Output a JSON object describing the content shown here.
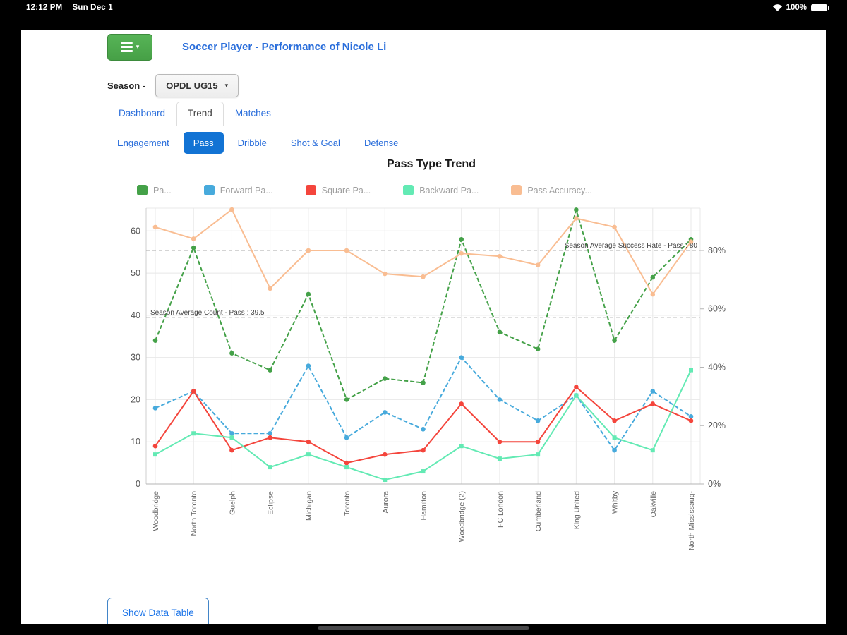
{
  "status_bar": {
    "time": "12:12 PM",
    "date": "Sun Dec 1",
    "battery": "100%"
  },
  "header": {
    "title": "Soccer Player - Performance of Nicole Li"
  },
  "season": {
    "label": "Season -",
    "value": "OPDL UG15"
  },
  "tabs": {
    "items": [
      "Dashboard",
      "Trend",
      "Matches"
    ],
    "active": "Trend"
  },
  "subtabs": {
    "items": [
      "Engagement",
      "Pass",
      "Dribble",
      "Shot & Goal",
      "Defense"
    ],
    "active": "Pass"
  },
  "footer": {
    "show_data_table": "Show Data Table"
  },
  "chart_data": {
    "type": "line",
    "title": "Pass Type Trend",
    "legend_position": "top",
    "grid": true,
    "categories": [
      "Woodbridge",
      "North Toronto",
      "Guelph",
      "Eclipse",
      "Michigan",
      "Toronto",
      "Aurora",
      "Hamilton",
      "Woodbridge (2)",
      "FC London",
      "Cumberland",
      "King United",
      "Whitby",
      "Oakville",
      "North Mississaug-"
    ],
    "series": [
      {
        "name": "Pa...",
        "color": "#44a148",
        "axis": "left",
        "dashed": true,
        "marker": "circle",
        "values": [
          34,
          56,
          31,
          27,
          45,
          20,
          25,
          24,
          58,
          36,
          32,
          65,
          34,
          49,
          58
        ]
      },
      {
        "name": "Forward Pa...",
        "color": "#47aadc",
        "axis": "left",
        "dashed": true,
        "marker": "circle",
        "values": [
          18,
          22,
          12,
          12,
          28,
          11,
          17,
          13,
          30,
          20,
          15,
          21,
          8,
          22,
          16
        ]
      },
      {
        "name": "Square Pa...",
        "color": "#f4453c",
        "axis": "left",
        "dashed": false,
        "marker": "circle",
        "values": [
          9,
          22,
          8,
          11,
          10,
          5,
          7,
          8,
          19,
          10,
          10,
          23,
          15,
          19,
          15
        ]
      },
      {
        "name": "Backward Pa...",
        "color": "#63eab4",
        "axis": "left",
        "dashed": false,
        "marker": "square",
        "values": [
          7,
          12,
          11,
          4,
          7,
          4,
          1,
          3,
          9,
          6,
          7,
          21,
          11,
          8,
          27
        ]
      },
      {
        "name": "Pass Accuracy...",
        "color": "#f9bd92",
        "axis": "right",
        "dashed": false,
        "marker": "circle",
        "values": [
          88,
          84,
          94,
          67,
          80,
          80,
          72,
          71,
          79,
          78,
          75,
          91,
          88,
          65,
          83
        ]
      }
    ],
    "left_axis": {
      "ticks": [
        0,
        10,
        20,
        30,
        40,
        50,
        60
      ],
      "max": 65.4
    },
    "right_axis": {
      "ticks": [
        0,
        20,
        40,
        60,
        80
      ],
      "suffix": "%",
      "max": 94.5
    },
    "annotations": [
      {
        "label": "Season Average Count - Pass : 39.5",
        "axis": "left",
        "value": 39.5,
        "align": "left"
      },
      {
        "label": "Season Average Success Rate - Pass : 80",
        "axis": "right",
        "value": 80,
        "align": "right"
      }
    ]
  }
}
